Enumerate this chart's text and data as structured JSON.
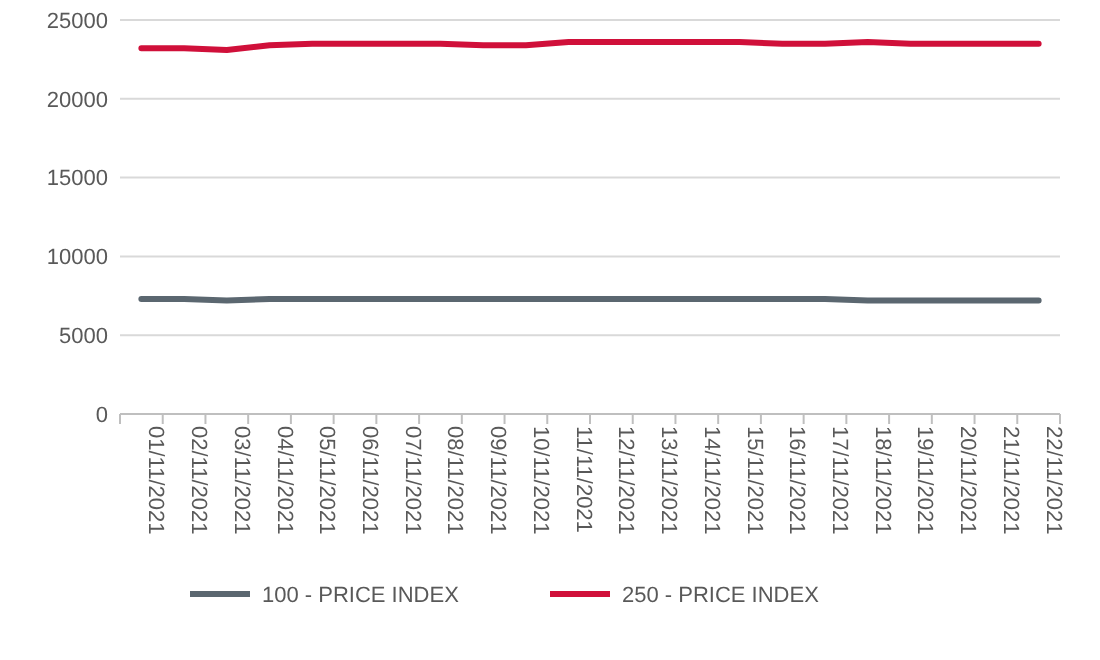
{
  "chart_data": {
    "type": "line",
    "categories": [
      "01/11/2021",
      "02/11/2021",
      "03/11/2021",
      "04/11/2021",
      "05/11/2021",
      "06/11/2021",
      "07/11/2021",
      "08/11/2021",
      "09/11/2021",
      "10/11/2021",
      "11/11/2021",
      "12/11/2021",
      "13/11/2021",
      "14/11/2021",
      "15/11/2021",
      "16/11/2021",
      "17/11/2021",
      "18/11/2021",
      "19/11/2021",
      "20/11/2021",
      "21/11/2021",
      "22/11/2021"
    ],
    "series": [
      {
        "name": "100 - PRICE INDEX",
        "color": "#5b6770",
        "values": [
          7300,
          7300,
          7200,
          7300,
          7300,
          7300,
          7300,
          7300,
          7300,
          7300,
          7300,
          7300,
          7300,
          7300,
          7300,
          7300,
          7300,
          7200,
          7200,
          7200,
          7200,
          7200
        ]
      },
      {
        "name": "250 - PRICE INDEX",
        "color": "#d0103a",
        "values": [
          23200,
          23200,
          23100,
          23400,
          23500,
          23500,
          23500,
          23500,
          23400,
          23400,
          23600,
          23600,
          23600,
          23600,
          23600,
          23500,
          23500,
          23600,
          23500,
          23500,
          23500,
          23500
        ]
      }
    ],
    "ylim": [
      0,
      25000
    ],
    "yticks": [
      0,
      5000,
      10000,
      15000,
      20000,
      25000
    ],
    "grid": "y",
    "legend": "bottom",
    "marker": "none",
    "line_style": "solid"
  }
}
